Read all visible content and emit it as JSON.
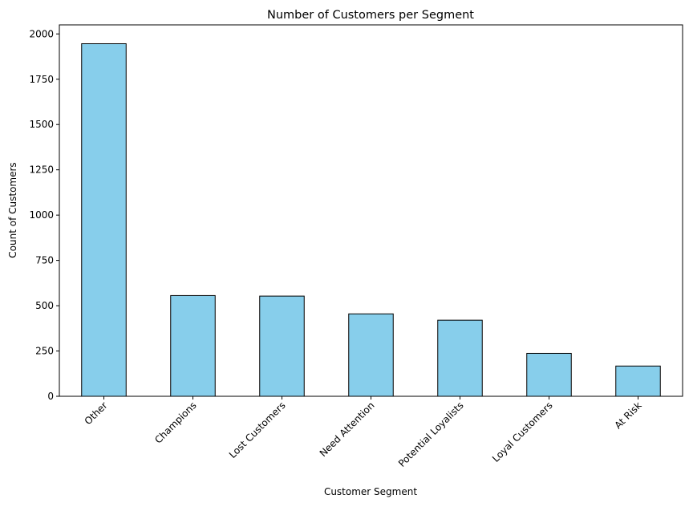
{
  "chart_data": {
    "type": "bar",
    "title": "Number of Customers per Segment",
    "xlabel": "Customer Segment",
    "ylabel": "Count of Customers",
    "categories": [
      "Other",
      "Champions",
      "Lost Customers",
      "Need Attention",
      "Potential Loyalists",
      "Loyal Customers",
      "At Risk"
    ],
    "values": [
      1946,
      556,
      553,
      455,
      420,
      237,
      167
    ],
    "ylim": [
      0,
      2050
    ],
    "yticks": [
      0,
      250,
      500,
      750,
      1000,
      1250,
      1500,
      1750,
      2000
    ],
    "grid": false,
    "bar_color": "#87CEEB",
    "edge_color": "#000000"
  }
}
